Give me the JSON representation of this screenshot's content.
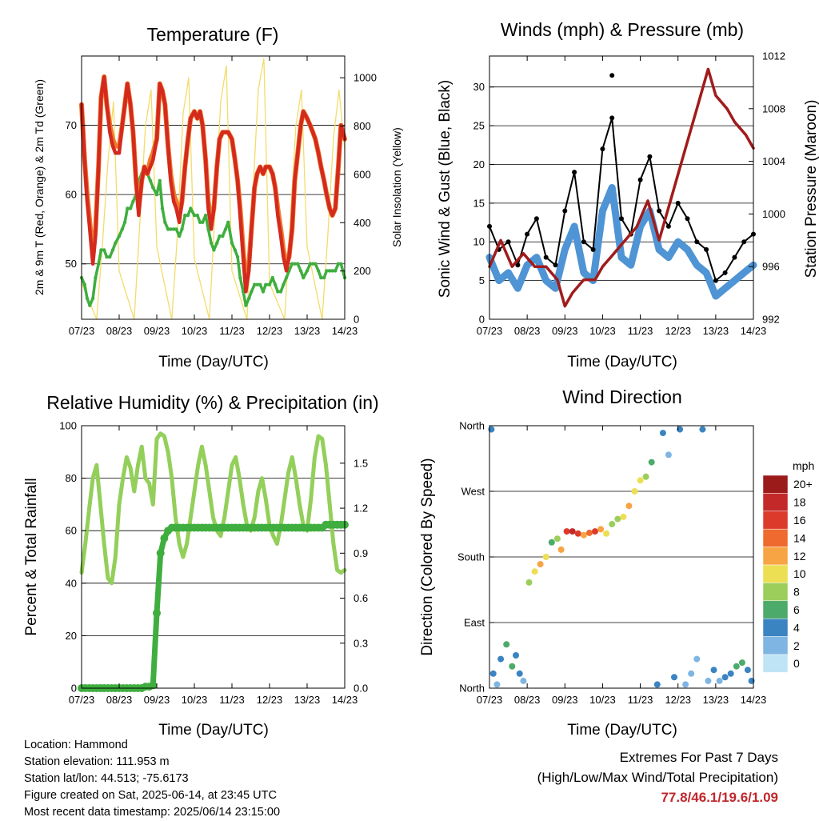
{
  "x_ticks": [
    "07/23",
    "08/23",
    "09/23",
    "10/23",
    "11/23",
    "12/23",
    "13/23",
    "14/23"
  ],
  "x_axis_label": "Time (Day/UTC)",
  "colors": {
    "temp_2m": "#d42a1e",
    "temp_9m": "#f07a2a",
    "dewpoint": "#3fae3f",
    "solar": "#f3dc6a",
    "wind": "#4f94d4",
    "gust": "#000000",
    "pressure": "#a01c1c",
    "rh": "#93cf5a",
    "precip": "#3fae3f"
  },
  "chart_data": [
    {
      "type": "line",
      "title": "Temperature (F)",
      "xlabel": "Time (Day/UTC)",
      "ylabel": "2m & 9m T (Red, Orange) & 2m Td (Green)",
      "y2label": "Solar Insolation (Yellow)",
      "ylim": [
        42,
        80
      ],
      "y2lim": [
        0,
        1090
      ],
      "yticks": [
        50,
        60,
        70
      ],
      "y2ticks": [
        0,
        200,
        400,
        600,
        800,
        1000
      ],
      "x": [
        0,
        0.08,
        0.15,
        0.22,
        0.3,
        0.37,
        0.45,
        0.52,
        0.6,
        0.67,
        0.75,
        0.83,
        0.9,
        1,
        1.08,
        1.15,
        1.22,
        1.3,
        1.37,
        1.45,
        1.52,
        1.6,
        1.67,
        1.75,
        1.83,
        1.9,
        2,
        2.08,
        2.15,
        2.22,
        2.3,
        2.37,
        2.45,
        2.52,
        2.6,
        2.67,
        2.75,
        2.83,
        2.9,
        3,
        3.08,
        3.15,
        3.22,
        3.3,
        3.37,
        3.45,
        3.52,
        3.6,
        3.67,
        3.75,
        3.83,
        3.9,
        4,
        4.08,
        4.15,
        4.22,
        4.3,
        4.37,
        4.45,
        4.52,
        4.6,
        4.67,
        4.75,
        4.83,
        4.9,
        5,
        5.08,
        5.15,
        5.22,
        5.3,
        5.37,
        5.45,
        5.52,
        5.6,
        5.67,
        5.75,
        5.83,
        5.9,
        6,
        6.08,
        6.15,
        6.22,
        6.3,
        6.37,
        6.45,
        6.52,
        6.6,
        6.67,
        6.75,
        6.83,
        6.9,
        7
      ],
      "series": [
        {
          "name": "2m T",
          "values": [
            73,
            65,
            59,
            55,
            50,
            54,
            64,
            74,
            77,
            73,
            69,
            67,
            66,
            66,
            70,
            73,
            76,
            73,
            69,
            62,
            57,
            62,
            64,
            63,
            64,
            65,
            68,
            76,
            75,
            73,
            67,
            62,
            59,
            58,
            56,
            59,
            64,
            68,
            71,
            72,
            71,
            72,
            70,
            65,
            58,
            55,
            58,
            64,
            68,
            69,
            69,
            69,
            68,
            65,
            62,
            57,
            51,
            46,
            49,
            55,
            61,
            63,
            64,
            63,
            64,
            64,
            63,
            61,
            57,
            54,
            51,
            49,
            51,
            55,
            62,
            66,
            70,
            72,
            71,
            70,
            69,
            68,
            66,
            64,
            62,
            60,
            58,
            57,
            58,
            64,
            70,
            68
          ]
        },
        {
          "name": "9m T",
          "values": [
            73,
            65,
            60,
            56,
            51,
            55,
            64,
            74,
            77,
            73,
            70,
            68,
            67,
            67,
            70,
            73,
            76,
            73,
            69,
            62,
            58,
            62,
            64,
            63,
            65,
            66,
            68,
            76,
            75,
            73,
            67,
            63,
            60,
            59,
            57,
            59,
            64,
            68,
            71,
            72,
            71,
            72,
            70,
            65,
            59,
            56,
            58,
            64,
            68,
            69,
            69,
            69,
            68,
            65,
            62,
            58,
            52,
            47,
            50,
            55,
            61,
            63,
            64,
            63,
            64,
            64,
            63,
            61,
            58,
            55,
            52,
            50,
            51,
            55,
            62,
            66,
            70,
            72,
            71,
            70,
            69,
            68,
            66,
            64,
            62,
            60,
            58,
            57,
            58,
            64,
            70,
            68
          ]
        },
        {
          "name": "2m Td",
          "values": [
            48,
            47,
            45,
            44,
            45,
            48,
            50,
            52,
            52,
            51,
            51,
            52,
            53,
            54,
            55,
            56,
            58,
            58,
            59,
            60,
            62,
            63,
            64,
            63,
            62,
            61,
            60,
            62,
            58,
            56,
            55,
            55,
            55,
            55,
            54,
            55,
            57,
            57,
            58,
            57,
            57,
            56,
            56,
            57,
            55,
            53,
            52,
            53,
            54,
            54,
            55,
            56,
            53,
            52,
            51,
            48,
            46,
            44,
            45,
            46,
            47,
            47,
            47,
            46,
            47,
            47,
            48,
            47,
            46,
            46,
            47,
            48,
            49,
            50,
            50,
            50,
            49,
            48,
            49,
            50,
            50,
            50,
            49,
            48,
            48,
            49,
            49,
            49,
            49,
            50,
            50,
            48
          ]
        }
      ],
      "solar": {
        "name": "Solar Insolation",
        "x": [
          0,
          0.4,
          0.55,
          0.7,
          0.85,
          1,
          1.4,
          1.55,
          1.7,
          1.85,
          2,
          2.4,
          2.55,
          2.7,
          2.85,
          3,
          3.4,
          3.55,
          3.7,
          3.85,
          4,
          4.4,
          4.55,
          4.7,
          4.85,
          5,
          5.4,
          5.55,
          5.7,
          5.85,
          6,
          6.4,
          6.55,
          6.7,
          6.85,
          7
        ],
        "values": [
          150,
          0,
          300,
          650,
          900,
          200,
          0,
          400,
          800,
          950,
          300,
          0,
          350,
          850,
          1000,
          250,
          0,
          450,
          900,
          1050,
          200,
          0,
          500,
          950,
          1080,
          150,
          0,
          400,
          800,
          950,
          300,
          0,
          350,
          750,
          950,
          700
        ]
      }
    },
    {
      "type": "scatter",
      "title": "Winds (mph) & Pressure (mb)",
      "xlabel": "Time (Day/UTC)",
      "ylabel": "Sonic Wind & Gust (Blue, Black)",
      "y2label": "Station Pressure (Maroon)",
      "ylim": [
        0,
        34
      ],
      "y2lim": [
        992,
        1012
      ],
      "yticks": [
        0,
        5,
        10,
        15,
        20,
        25,
        30
      ],
      "y2ticks": [
        992,
        996,
        1000,
        1004,
        1008,
        1012
      ],
      "x": [
        0,
        0.25,
        0.5,
        0.75,
        1,
        1.25,
        1.5,
        1.75,
        2,
        2.25,
        2.5,
        2.75,
        3,
        3.25,
        3.5,
        3.75,
        4,
        4.25,
        4.5,
        4.75,
        5,
        5.25,
        5.5,
        5.75,
        6,
        6.25,
        6.5,
        6.75,
        7
      ],
      "series": [
        {
          "name": "Sonic Wind",
          "values": [
            8,
            5,
            6,
            4,
            7,
            8,
            5,
            4,
            9,
            12,
            6,
            5,
            14,
            17,
            8,
            7,
            12,
            14,
            9,
            8,
            10,
            9,
            7,
            6,
            3,
            4,
            5,
            6,
            7
          ]
        },
        {
          "name": "Gust",
          "values": [
            12,
            9,
            10,
            7,
            11,
            13,
            8,
            7,
            14,
            19,
            10,
            9,
            22,
            26,
            13,
            11,
            18,
            21,
            14,
            12,
            15,
            13,
            10,
            9,
            5,
            6,
            8,
            10,
            11
          ]
        }
      ],
      "pressure": {
        "name": "Station Pressure",
        "x": [
          0,
          0.3,
          0.6,
          0.9,
          1.2,
          1.5,
          1.8,
          2,
          2.2,
          2.5,
          2.8,
          3,
          3.3,
          3.6,
          3.9,
          4.2,
          4.5,
          4.8,
          5,
          5.2,
          5.5,
          5.8,
          6,
          6.3,
          6.5,
          6.8,
          7
        ],
        "values": [
          996,
          998,
          996,
          997,
          996,
          996,
          995,
          993,
          994,
          995,
          995,
          996,
          997,
          998,
          999,
          1001,
          998,
          1001,
          1003,
          1005,
          1008,
          1011,
          1009,
          1008,
          1007,
          1006,
          1005
        ]
      },
      "max_gust": 31.5
    },
    {
      "type": "line",
      "title": "Relative Humidity (%) & Precipitation (in)",
      "xlabel": "Time (Day/UTC)",
      "ylabel": "Percent & Total Rainfall",
      "ylim": [
        0,
        100
      ],
      "y2lim": [
        0,
        1.75
      ],
      "yticks": [
        0,
        20,
        40,
        60,
        80,
        100
      ],
      "y2ticks": [
        "0.0",
        "0.3",
        "0.6",
        "0.9",
        "1.2",
        "1.5"
      ],
      "x": [
        0,
        0.1,
        0.2,
        0.3,
        0.4,
        0.5,
        0.6,
        0.7,
        0.8,
        0.9,
        1,
        1.1,
        1.2,
        1.3,
        1.4,
        1.5,
        1.6,
        1.7,
        1.8,
        1.9,
        2,
        2.1,
        2.2,
        2.3,
        2.4,
        2.5,
        2.6,
        2.7,
        2.8,
        2.9,
        3,
        3.1,
        3.2,
        3.3,
        3.4,
        3.5,
        3.6,
        3.7,
        3.8,
        3.9,
        4,
        4.1,
        4.2,
        4.3,
        4.4,
        4.5,
        4.6,
        4.7,
        4.8,
        4.9,
        5,
        5.1,
        5.2,
        5.3,
        5.4,
        5.5,
        5.6,
        5.7,
        5.8,
        5.9,
        6,
        6.1,
        6.2,
        6.3,
        6.4,
        6.5,
        6.6,
        6.7,
        6.8,
        6.9,
        7
      ],
      "series": [
        {
          "name": "Relative Humidity",
          "values": [
            44,
            55,
            68,
            80,
            85,
            70,
            55,
            42,
            40,
            50,
            70,
            80,
            88,
            84,
            75,
            85,
            92,
            80,
            78,
            70,
            95,
            97,
            96,
            90,
            80,
            65,
            55,
            50,
            55,
            65,
            75,
            85,
            92,
            85,
            75,
            65,
            60,
            58,
            65,
            75,
            85,
            88,
            80,
            70,
            62,
            60,
            65,
            75,
            80,
            72,
            62,
            58,
            55,
            62,
            72,
            82,
            88,
            80,
            70,
            62,
            60,
            72,
            88,
            96,
            95,
            85,
            70,
            55,
            45,
            44,
            45
          ]
        },
        {
          "name": "Total Rainfall",
          "values": [
            0,
            0,
            0,
            0,
            0,
            0,
            0,
            0,
            0,
            0,
            0,
            0,
            0,
            0,
            0,
            0,
            0,
            0.01,
            0.01,
            0.02,
            0.5,
            0.9,
            1.0,
            1.05,
            1.07,
            1.07,
            1.07,
            1.07,
            1.07,
            1.07,
            1.07,
            1.07,
            1.07,
            1.07,
            1.07,
            1.07,
            1.07,
            1.07,
            1.07,
            1.07,
            1.07,
            1.07,
            1.07,
            1.07,
            1.07,
            1.07,
            1.07,
            1.07,
            1.07,
            1.07,
            1.07,
            1.07,
            1.07,
            1.07,
            1.07,
            1.07,
            1.07,
            1.07,
            1.07,
            1.07,
            1.07,
            1.07,
            1.07,
            1.07,
            1.07,
            1.09,
            1.09,
            1.09,
            1.09,
            1.09,
            1.09
          ]
        }
      ]
    },
    {
      "type": "scatter",
      "title": "Wind Direction",
      "xlabel": "Time (Day/UTC)",
      "ylabel": "Direction (Colored By Speed)",
      "ylim": [
        0,
        360
      ],
      "ytick_labels": [
        "North",
        "East",
        "South",
        "West",
        "North"
      ],
      "ytick_values": [
        0,
        90,
        180,
        270,
        360
      ],
      "x": [
        0.05,
        0.1,
        0.2,
        0.3,
        0.45,
        0.6,
        0.7,
        0.8,
        0.9,
        1.05,
        1.2,
        1.35,
        1.5,
        1.65,
        1.8,
        1.9,
        2.05,
        2.2,
        2.35,
        2.5,
        2.65,
        2.8,
        2.95,
        3.1,
        3.25,
        3.4,
        3.55,
        3.7,
        3.85,
        4,
        4.15,
        4.3,
        4.45,
        4.6,
        4.75,
        4.9,
        5.05,
        5.2,
        5.35,
        5.5,
        5.65,
        5.8,
        5.95,
        6.1,
        6.25,
        6.4,
        6.55,
        6.7,
        6.85,
        6.95
      ],
      "directions": [
        355,
        20,
        5,
        40,
        60,
        30,
        45,
        20,
        10,
        145,
        160,
        170,
        180,
        200,
        205,
        190,
        215,
        215,
        212,
        210,
        213,
        215,
        218,
        212,
        225,
        232,
        235,
        250,
        270,
        285,
        290,
        310,
        5,
        350,
        320,
        15,
        355,
        5,
        20,
        40,
        355,
        10,
        25,
        10,
        15,
        20,
        30,
        35,
        25,
        10
      ],
      "speeds": [
        4,
        3,
        2,
        4,
        6,
        5,
        4,
        3,
        2,
        8,
        10,
        12,
        10,
        6,
        8,
        12,
        16,
        18,
        16,
        12,
        14,
        16,
        12,
        10,
        8,
        8,
        10,
        12,
        9,
        10,
        8,
        6,
        4,
        3,
        2,
        4,
        3,
        2,
        1,
        2,
        3,
        2,
        3,
        2,
        3,
        4,
        5,
        6,
        4,
        3
      ],
      "colorbar_label": "mph",
      "colorbar_levels": [
        "20+",
        "18",
        "16",
        "14",
        "12",
        "10",
        "8",
        "6",
        "4",
        "2",
        "0"
      ],
      "colorbar_colors": [
        "#9b1b1b",
        "#c4292a",
        "#dc3b2b",
        "#ee6a2f",
        "#f7a444",
        "#ecdf54",
        "#9cce5b",
        "#4caa6a",
        "#3b84c2",
        "#7fb5e2",
        "#bfe4f6"
      ]
    }
  ],
  "footer": {
    "location": "Location: Hammond",
    "elevation": "Station elevation: 111.953 m",
    "latlon": "Station lat/lon: 44.513; -75.6173",
    "created": "Figure created on Sat, 2025-06-14, at 23:45 UTC",
    "recent": "Most recent data timestamp: 2025/06/14 23:15:00",
    "extremes_title": "Extremes For Past 7 Days",
    "extremes_desc": "(High/Low/Max Wind/Total Precipitation)",
    "extremes_values": "77.8/46.1/19.6/1.09"
  }
}
